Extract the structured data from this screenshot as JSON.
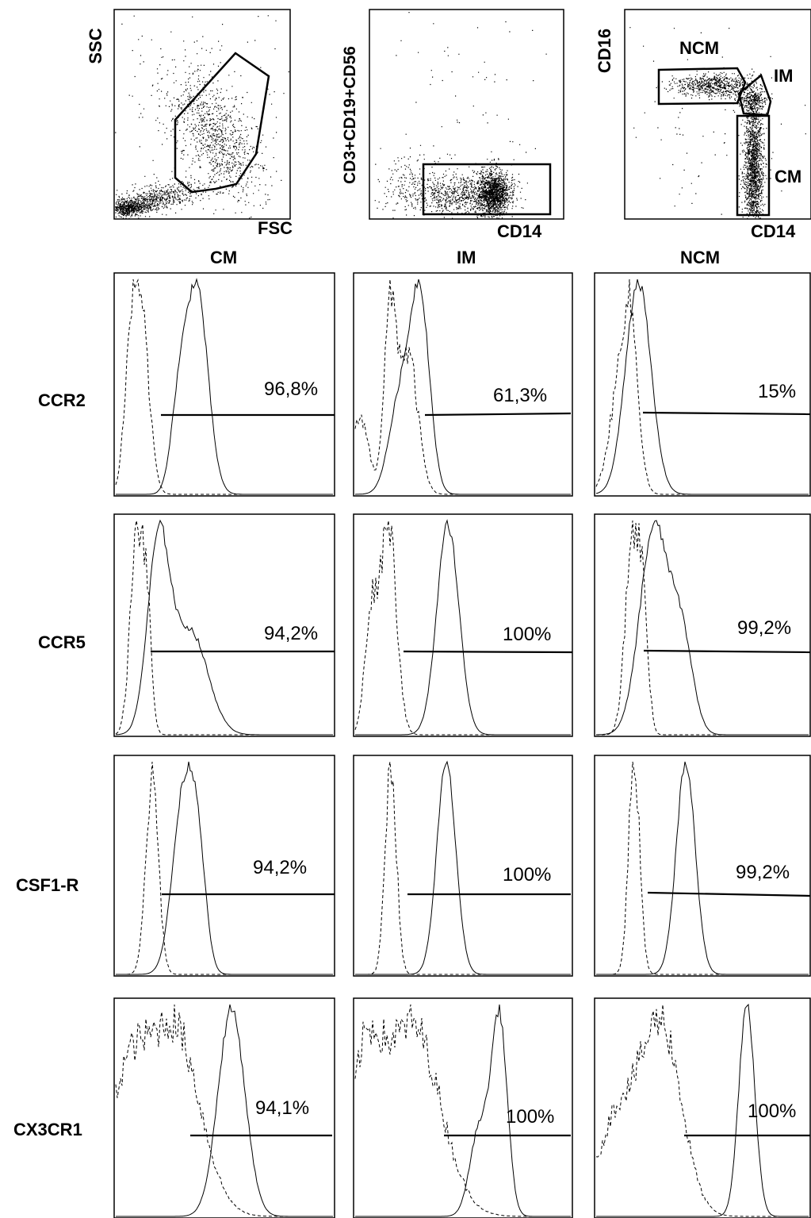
{
  "figure": {
    "scatter_axes": [
      {
        "x_label": "FSC",
        "y_label": "SSC"
      },
      {
        "x_label": "CD14",
        "y_label": "CD3+CD19+CD56"
      },
      {
        "x_label": "CD14",
        "y_label": "CD16"
      }
    ],
    "gate_labels": [
      "NCM",
      "IM",
      "CM"
    ],
    "column_titles": [
      "CM",
      "IM",
      "NCM"
    ],
    "row_labels": [
      "CCR2",
      "CCR5",
      "CSF1-R",
      "CX3CR1"
    ],
    "percentages": [
      [
        "96,8%",
        "61,3%",
        "15%"
      ],
      [
        "94,2%",
        "100%",
        "99,2%"
      ],
      [
        "94,2%",
        "100%",
        "99,2%"
      ],
      [
        "94,1%",
        "100%",
        "100%"
      ]
    ]
  },
  "chart_data": [
    {
      "type": "scatter",
      "xlabel": "FSC",
      "ylabel": "SSC",
      "gates": []
    },
    {
      "type": "scatter",
      "xlabel": "CD14",
      "ylabel": "CD3+CD19+CD56",
      "gates": []
    },
    {
      "type": "scatter",
      "xlabel": "CD14",
      "ylabel": "CD16",
      "gates": [
        "NCM",
        "IM",
        "CM"
      ]
    },
    {
      "type": "histogram",
      "row": "CCR2",
      "column": "CM",
      "positive_percent": 96.8,
      "label": "96,8%"
    },
    {
      "type": "histogram",
      "row": "CCR2",
      "column": "IM",
      "positive_percent": 61.3,
      "label": "61,3%"
    },
    {
      "type": "histogram",
      "row": "CCR2",
      "column": "NCM",
      "positive_percent": 15,
      "label": "15%"
    },
    {
      "type": "histogram",
      "row": "CCR5",
      "column": "CM",
      "positive_percent": 94.2,
      "label": "94,2%"
    },
    {
      "type": "histogram",
      "row": "CCR5",
      "column": "IM",
      "positive_percent": 100,
      "label": "100%"
    },
    {
      "type": "histogram",
      "row": "CCR5",
      "column": "NCM",
      "positive_percent": 99.2,
      "label": "99,2%"
    },
    {
      "type": "histogram",
      "row": "CSF1-R",
      "column": "CM",
      "positive_percent": 94.2,
      "label": "94,2%"
    },
    {
      "type": "histogram",
      "row": "CSF1-R",
      "column": "IM",
      "positive_percent": 100,
      "label": "100%"
    },
    {
      "type": "histogram",
      "row": "CSF1-R",
      "column": "NCM",
      "positive_percent": 99.2,
      "label": "99,2%"
    },
    {
      "type": "histogram",
      "row": "CX3CR1",
      "column": "CM",
      "positive_percent": 94.1,
      "label": "94,1%"
    },
    {
      "type": "histogram",
      "row": "CX3CR1",
      "column": "IM",
      "positive_percent": 100,
      "label": "100%"
    },
    {
      "type": "histogram",
      "row": "CX3CR1",
      "column": "NCM",
      "positive_percent": 100,
      "label": "100%"
    }
  ]
}
